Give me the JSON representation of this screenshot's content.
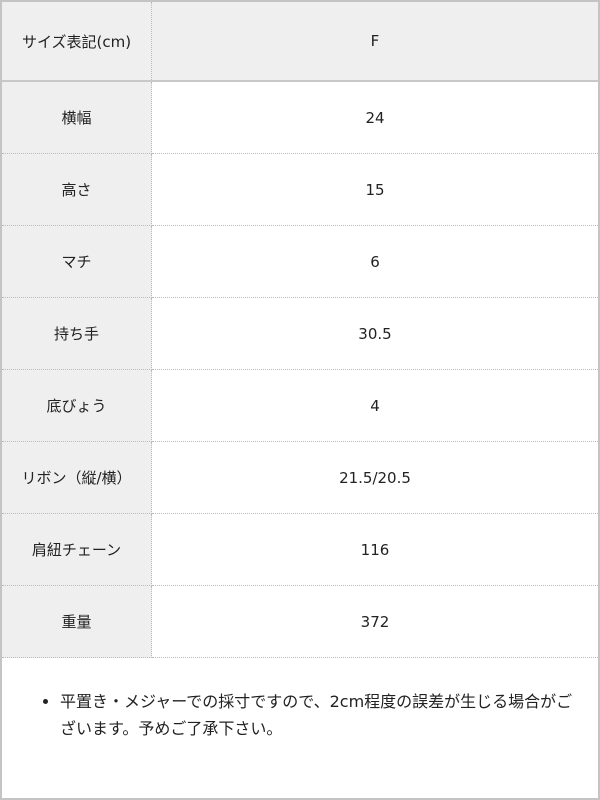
{
  "header": {
    "label": "サイズ表記(cm)",
    "value": "F"
  },
  "rows": [
    {
      "label": "横幅",
      "value": "24"
    },
    {
      "label": "高さ",
      "value": "15"
    },
    {
      "label": "マチ",
      "value": "6"
    },
    {
      "label": "持ち手",
      "value": "30.5"
    },
    {
      "label": "底びょう",
      "value": "4"
    },
    {
      "label": "リボン（縦/横）",
      "value": "21.5/20.5"
    },
    {
      "label": "肩紐チェーン",
      "value": "116"
    },
    {
      "label": "重量",
      "value": "372"
    }
  ],
  "note": "平置き・メジャーでの採寸ですので、2cm程度の誤差が生じる場合がございます。予めご了承下さい。"
}
